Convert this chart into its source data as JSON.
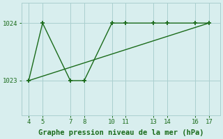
{
  "x": [
    4,
    5,
    7,
    8,
    10,
    11,
    13,
    14,
    16,
    17
  ],
  "y": [
    1023,
    1024,
    1023,
    1023,
    1024,
    1024,
    1024,
    1024,
    1024,
    1024
  ],
  "trend_x": [
    4,
    17
  ],
  "trend_y": [
    1023.0,
    1024.0
  ],
  "line_color": "#1a6b1a",
  "bg_color": "#d8eeee",
  "grid_color": "#aacfcf",
  "xlabel": "Graphe pression niveau de la mer (hPa)",
  "xlim": [
    3.5,
    17.8
  ],
  "ylim": [
    1022.4,
    1024.35
  ],
  "xticks": [
    4,
    5,
    7,
    8,
    10,
    11,
    13,
    14,
    16,
    17
  ],
  "yticks": [
    1023,
    1024
  ],
  "tick_fontsize": 6.5,
  "xlabel_fontsize": 7.5
}
